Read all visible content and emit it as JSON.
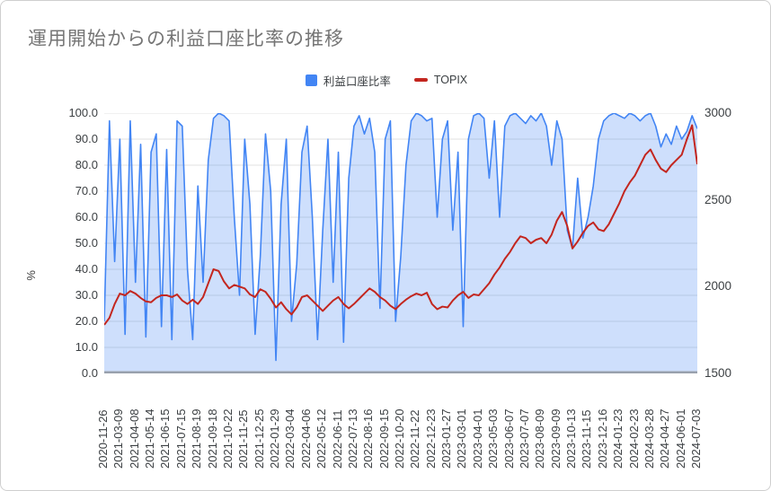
{
  "chart_data": {
    "type": "area",
    "title": "運用開始からの利益口座比率の推移",
    "legend_position": "top",
    "grid": true,
    "grid_color": "#e0e0e0",
    "axis_line_color": "#99a0ad",
    "left_axis": {
      "title": "%",
      "min": 0,
      "max": 100,
      "ticks": [
        "100.0",
        "90.0",
        "80.0",
        "70.0",
        "60.0",
        "50.0",
        "40.0",
        "30.0",
        "20.0",
        "10.0",
        "0.0"
      ]
    },
    "right_axis": {
      "min": 1500,
      "max": 3000,
      "ticks": [
        "3000",
        "2500",
        "2000",
        "1500"
      ]
    },
    "x_tick_labels": [
      "2020-11-26",
      "2021-03-09",
      "2021-04-08",
      "2021-05-14",
      "2021-06-15",
      "2021-07-15",
      "2021-08-19",
      "2021-09-18",
      "2021-10-22",
      "2021-11-25",
      "2021-12-25",
      "2022-01-29",
      "2022-03-04",
      "2022-04-06",
      "2022-05-12",
      "2022-06-11",
      "2022-07-13",
      "2022-08-16",
      "2022-09-15",
      "2022-10-20",
      "2022-11-22",
      "2022-12-23",
      "2023-01-27",
      "2023-03-01",
      "2023-04-01",
      "2023-05-03",
      "2023-06-07",
      "2023-07-07",
      "2023-08-09",
      "2023-09-09",
      "2023-10-13",
      "2023-11-15",
      "2023-12-16",
      "2024-01-23",
      "2024-02-23",
      "2024-03-28",
      "2024-04-27",
      "2024-06-01",
      "2024-07-03"
    ],
    "series": [
      {
        "name": "利益口座比率",
        "axis": "left",
        "style": "area",
        "color": "#4285f4",
        "fill": "rgba(66,133,244,0.26)",
        "values": [
          20,
          97,
          43,
          90,
          15,
          97,
          35,
          88,
          14,
          85,
          92,
          18,
          86,
          13,
          97,
          95,
          40,
          13,
          72,
          35,
          82,
          98,
          100,
          99,
          97,
          60,
          30,
          90,
          65,
          15,
          45,
          92,
          70,
          5,
          65,
          90,
          20,
          42,
          85,
          95,
          60,
          13,
          55,
          90,
          35,
          85,
          12,
          75,
          95,
          99,
          92,
          98,
          85,
          25,
          90,
          97,
          20,
          45,
          80,
          97,
          100,
          99,
          97,
          98,
          60,
          90,
          97,
          55,
          85,
          18,
          90,
          99,
          100,
          98,
          75,
          97,
          60,
          95,
          99,
          100,
          98,
          96,
          99,
          97,
          100,
          95,
          80,
          97,
          90,
          55,
          48,
          75,
          52,
          60,
          72,
          90,
          97,
          99,
          100,
          99,
          98,
          100,
          99,
          97,
          99,
          100,
          95,
          87,
          92,
          88,
          95,
          90,
          93,
          99,
          94
        ]
      },
      {
        "name": "TOPIX",
        "axis": "right",
        "style": "line",
        "color": "#c3261f",
        "values": [
          1780,
          1820,
          1900,
          1960,
          1950,
          1975,
          1960,
          1935,
          1915,
          1910,
          1935,
          1950,
          1950,
          1940,
          1955,
          1920,
          1900,
          1925,
          1900,
          1940,
          2020,
          2100,
          2090,
          2030,
          1990,
          2010,
          2000,
          1990,
          1955,
          1940,
          1985,
          1970,
          1930,
          1880,
          1910,
          1870,
          1840,
          1880,
          1940,
          1950,
          1920,
          1890,
          1860,
          1890,
          1920,
          1940,
          1900,
          1875,
          1900,
          1930,
          1960,
          1990,
          1970,
          1940,
          1920,
          1890,
          1870,
          1900,
          1925,
          1945,
          1960,
          1950,
          1965,
          1900,
          1870,
          1885,
          1880,
          1920,
          1950,
          1970,
          1935,
          1955,
          1950,
          1985,
          2020,
          2070,
          2110,
          2160,
          2200,
          2250,
          2290,
          2280,
          2250,
          2270,
          2280,
          2250,
          2300,
          2380,
          2430,
          2350,
          2220,
          2260,
          2310,
          2350,
          2370,
          2330,
          2320,
          2360,
          2420,
          2480,
          2550,
          2600,
          2640,
          2700,
          2760,
          2790,
          2730,
          2680,
          2660,
          2700,
          2730,
          2760,
          2850,
          2930,
          2705
        ]
      }
    ]
  }
}
